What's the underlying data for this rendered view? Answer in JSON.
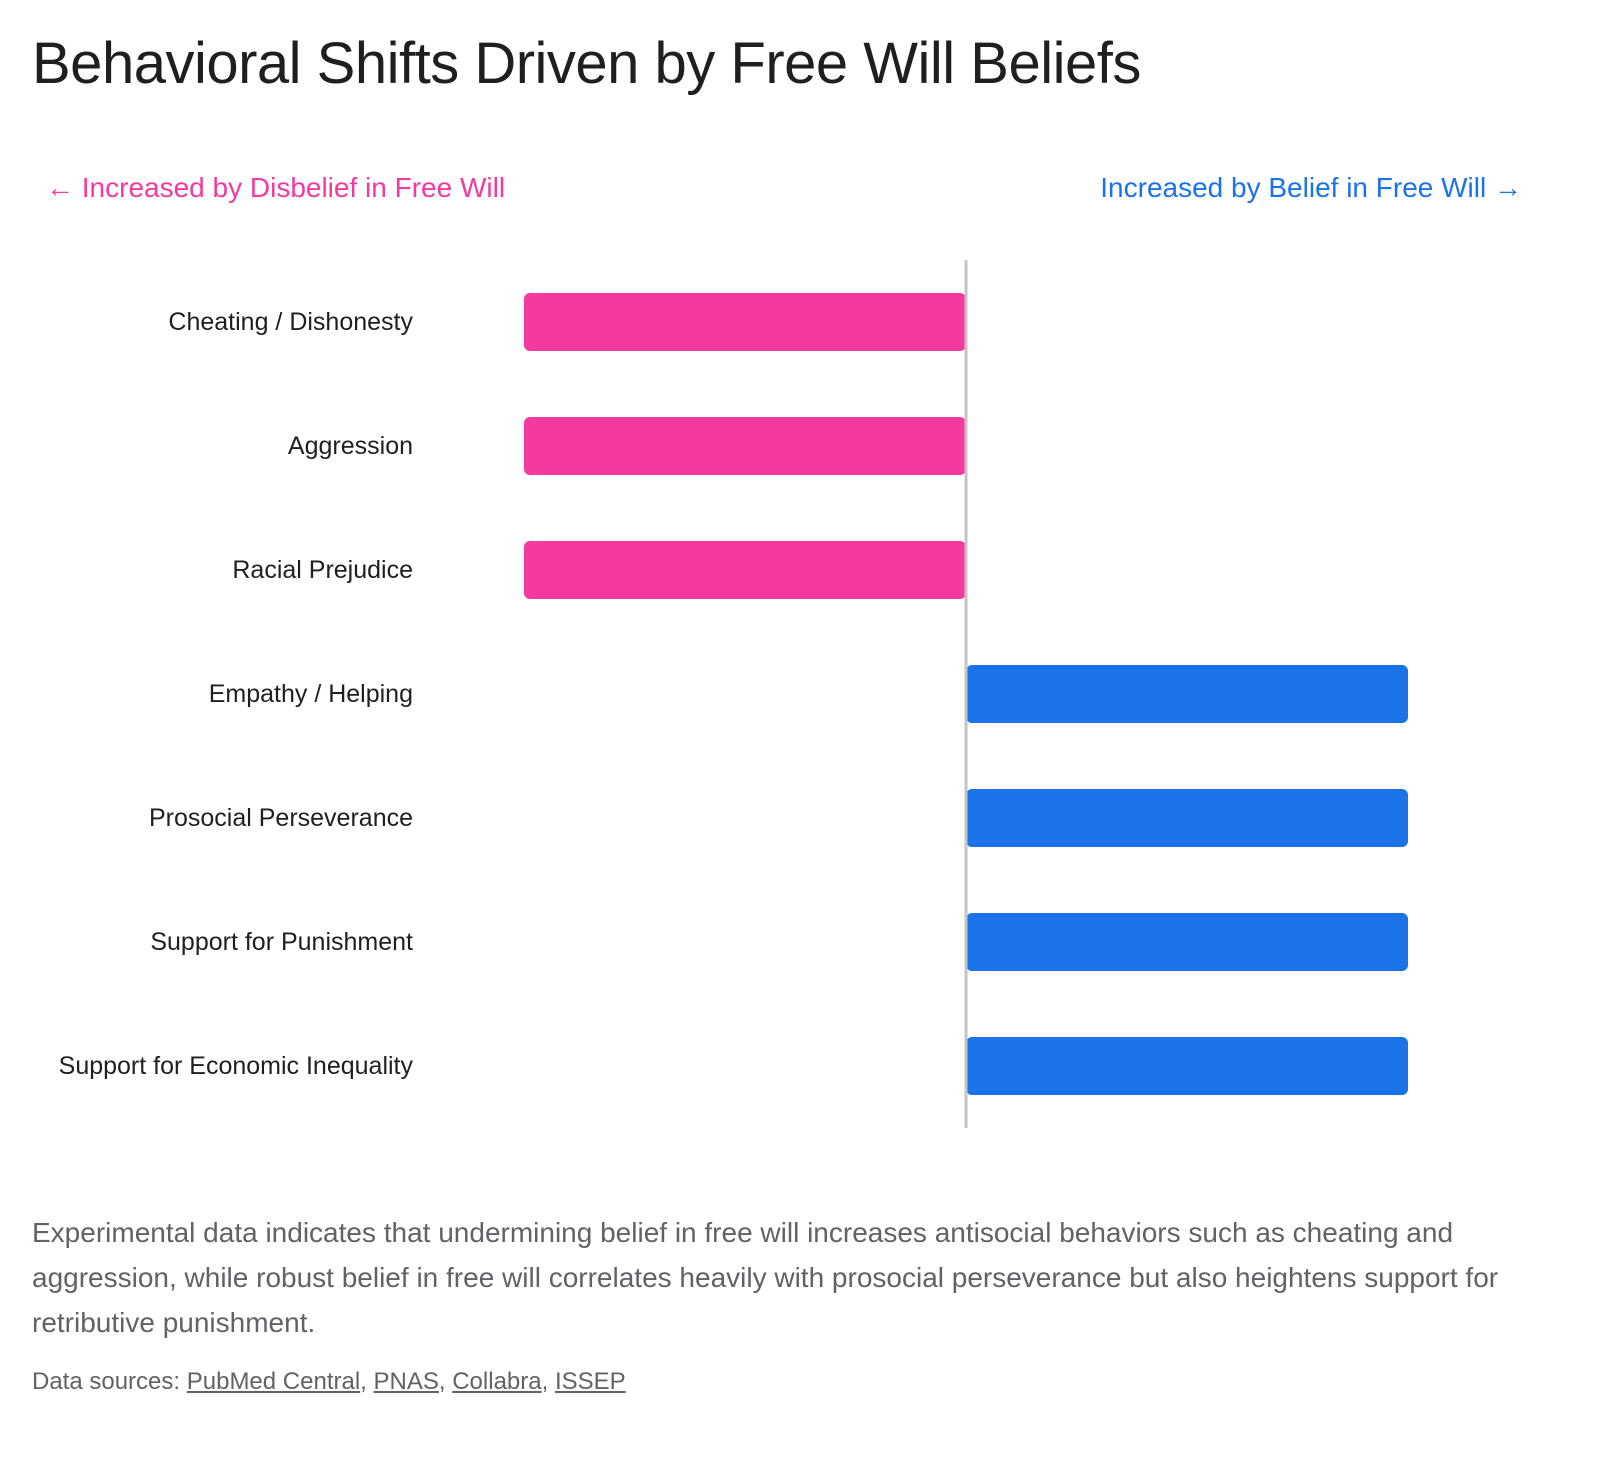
{
  "title": "Behavioral Shifts Driven by Free Will Beliefs",
  "direction_labels": {
    "left": "← Increased by Disbelief in Free Will",
    "right": "Increased by Belief in Free Will →"
  },
  "caption": "Experimental data indicates that undermining belief in free will increases antisocial behaviors such as cheating and aggression, while robust belief in free will correlates heavily with prosocial perseverance but also heightens support for retributive punishment.",
  "sources": {
    "prefix": "Data sources: ",
    "links": [
      "PubMed Central",
      "PNAS",
      "Collabra",
      "ISSEP"
    ]
  },
  "colors": {
    "disbelief": "#f43a9f",
    "belief": "#1a73e8",
    "axis": "#c4c4c4"
  },
  "chart_data": {
    "type": "bar",
    "orientation": "horizontal",
    "categories": [
      "Cheating / Dishonesty",
      "Aggression",
      "Racial Prejudice",
      "Empathy / Helping",
      "Prosocial Perseverance",
      "Support for Punishment",
      "Support for Economic Inequality"
    ],
    "values": [
      -1,
      -1,
      -1,
      1,
      1,
      1,
      1
    ],
    "xlim": [
      -1,
      1
    ],
    "grid": false,
    "legend": "none"
  }
}
